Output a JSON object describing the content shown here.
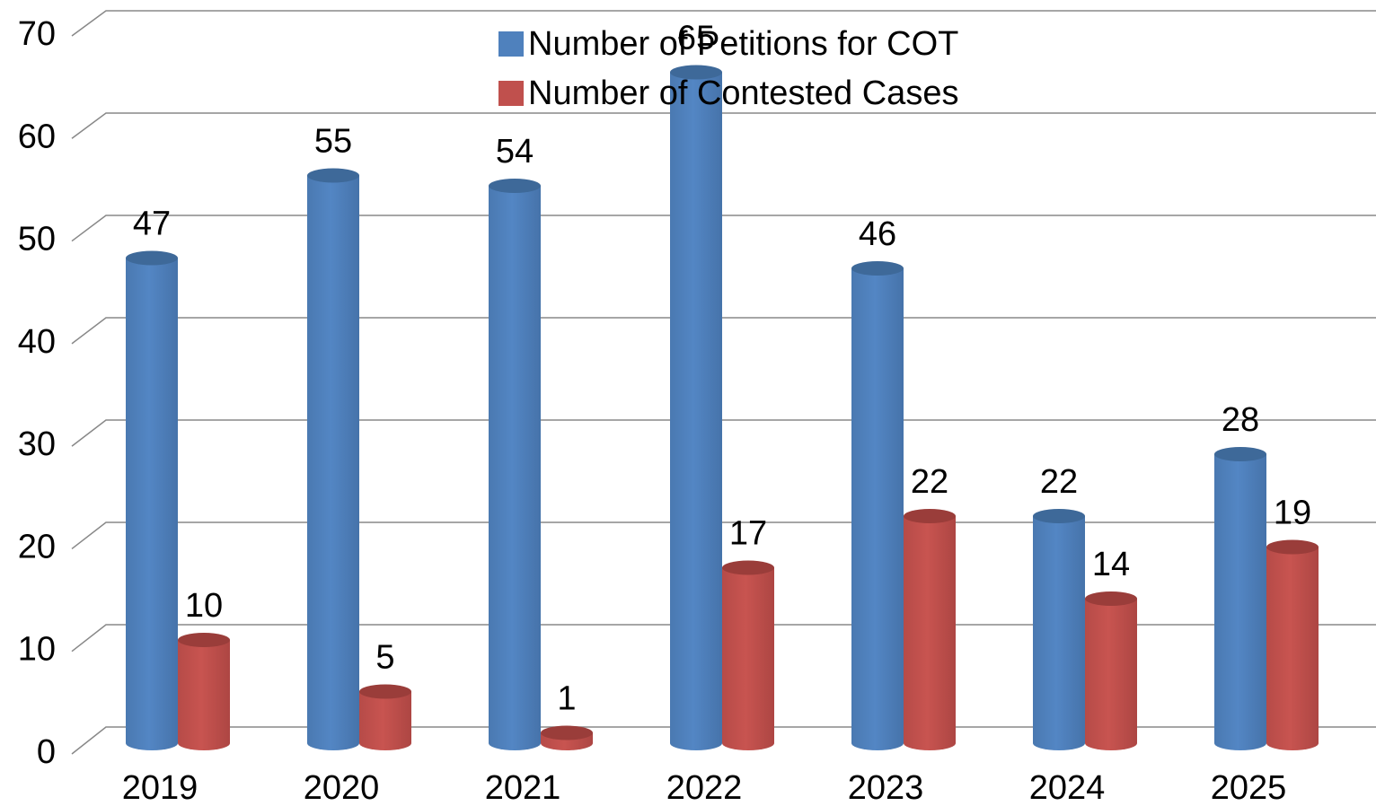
{
  "chart_data": {
    "type": "bar3d",
    "categories": [
      "2019",
      "2020",
      "2021",
      "2022",
      "2023",
      "2024",
      "2025"
    ],
    "series": [
      {
        "name": "Number of Petitions for COT",
        "color": "#4f81bd",
        "values": [
          47,
          55,
          54,
          65,
          46,
          22,
          28
        ]
      },
      {
        "name": "Number of Contested Cases",
        "color": "#c0504d",
        "values": [
          10,
          5,
          1,
          17,
          22,
          14,
          19
        ]
      }
    ],
    "ylim": [
      0,
      70
    ],
    "yticks": [
      0,
      10,
      20,
      30,
      40,
      50,
      60,
      70
    ],
    "grid": true,
    "legend": "top"
  }
}
